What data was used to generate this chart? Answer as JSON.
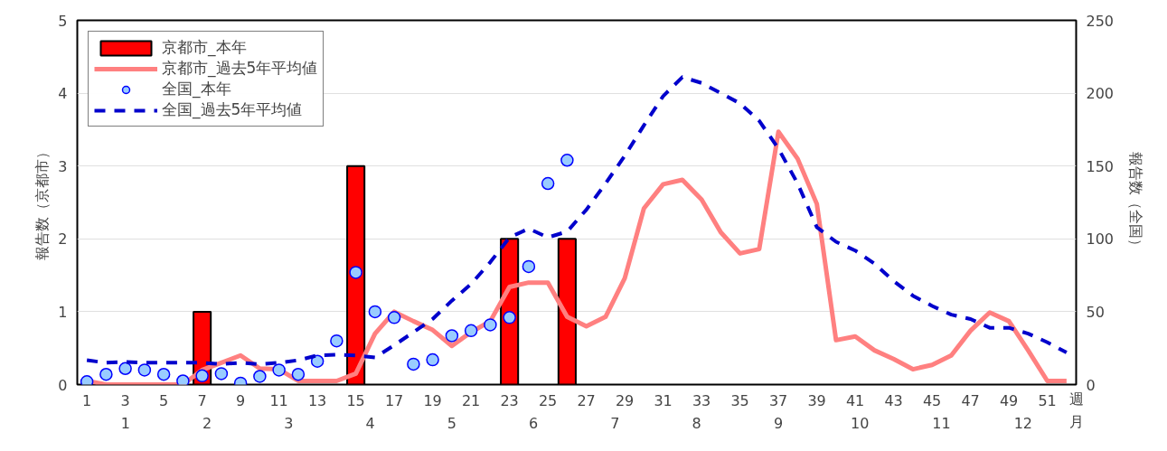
{
  "chart_data": {
    "type": "bar",
    "xlabel": "週",
    "x2label": "月",
    "ylabel": "報告数（京都市）",
    "y2label": "報告数（全国）",
    "x": [
      1,
      2,
      3,
      4,
      5,
      6,
      7,
      8,
      9,
      10,
      11,
      12,
      13,
      14,
      15,
      16,
      17,
      18,
      19,
      20,
      21,
      22,
      23,
      24,
      25,
      26,
      27,
      28,
      29,
      30,
      31,
      32,
      33,
      34,
      35,
      36,
      37,
      38,
      39,
      40,
      41,
      42,
      43,
      44,
      45,
      46,
      47,
      48,
      49,
      50,
      51,
      52
    ],
    "xlim": [
      0.5,
      52.5
    ],
    "xticks": [
      1,
      3,
      5,
      7,
      9,
      11,
      13,
      15,
      17,
      19,
      21,
      23,
      25,
      27,
      29,
      31,
      33,
      35,
      37,
      39,
      41,
      43,
      45,
      47,
      49,
      51
    ],
    "x2lim": [
      0.41,
      12.65
    ],
    "x2ticks": [
      1,
      2,
      3,
      4,
      5,
      6,
      7,
      8,
      9,
      10,
      11,
      12
    ],
    "ylim": [
      0,
      5
    ],
    "yticks": [
      0,
      1,
      2,
      3,
      4,
      5
    ],
    "y2lim": [
      0,
      250
    ],
    "y2ticks": [
      0,
      50,
      100,
      150,
      200,
      250
    ],
    "grid": "y",
    "legend": "top left",
    "series": [
      {
        "name": "京都市_本年",
        "color": "#ff0000",
        "values": [
          null,
          null,
          null,
          null,
          null,
          null,
          1,
          null,
          null,
          null,
          null,
          null,
          null,
          null,
          3,
          null,
          null,
          null,
          null,
          null,
          null,
          null,
          2,
          null,
          null,
          2,
          null,
          null,
          null,
          null,
          null,
          null,
          null,
          null,
          null,
          null,
          null,
          null,
          null,
          null,
          null,
          null,
          null,
          null,
          null,
          null,
          null,
          null,
          null,
          null,
          null,
          null
        ]
      },
      {
        "name": "京都市_過去5年平均値",
        "type": "line",
        "color": "#ff8080",
        "line_style": "solid",
        "values": [
          0.05,
          0,
          0,
          0,
          0,
          0,
          0.2,
          0.3,
          0.4,
          0.22,
          0.21,
          0.05,
          0.05,
          0.05,
          0.15,
          0.7,
          1.0,
          0.87,
          0.75,
          0.53,
          0.72,
          0.87,
          1.34,
          1.4,
          1.4,
          0.93,
          0.8,
          0.93,
          1.46,
          2.42,
          2.75,
          2.81,
          2.54,
          2.09,
          1.8,
          1.86,
          3.47,
          3.1,
          2.48,
          0.61,
          0.66,
          0.47,
          0.35,
          0.21,
          0.27,
          0.4,
          0.74,
          0.99,
          0.87,
          0.47,
          0.05,
          0.05
        ]
      },
      {
        "name": "全国_本年",
        "type": "scatter",
        "axis": "y2",
        "marker": "circle",
        "color": "#99ccff",
        "values": [
          2,
          7,
          11,
          10,
          7,
          2.5,
          6,
          7.5,
          1,
          5.6,
          10,
          7,
          16,
          30,
          77,
          50,
          46,
          14,
          17,
          33.5,
          37,
          41,
          46,
          81,
          138,
          154,
          null,
          null,
          null,
          null,
          null,
          null,
          null,
          null,
          null,
          null,
          null,
          null,
          null,
          null,
          null,
          null,
          null,
          null,
          null,
          null,
          null,
          null,
          null,
          null,
          null,
          null
        ]
      },
      {
        "name": "全国_過去5年平均値",
        "type": "line",
        "axis": "y2",
        "color": "#0000cc",
        "line_style": "dashed",
        "values": [
          16.7,
          15,
          15.5,
          15,
          15,
          15,
          15,
          14,
          15,
          14,
          15,
          16.7,
          20,
          20.5,
          20,
          18.6,
          27,
          36,
          45,
          57.6,
          69,
          84,
          101,
          107,
          101,
          105,
          120,
          138,
          157,
          178,
          198,
          211,
          207,
          200,
          193,
          181,
          162,
          138,
          108,
          98,
          92,
          83,
          71,
          61,
          54,
          48,
          45,
          39,
          39,
          35,
          29,
          22
        ]
      }
    ]
  }
}
